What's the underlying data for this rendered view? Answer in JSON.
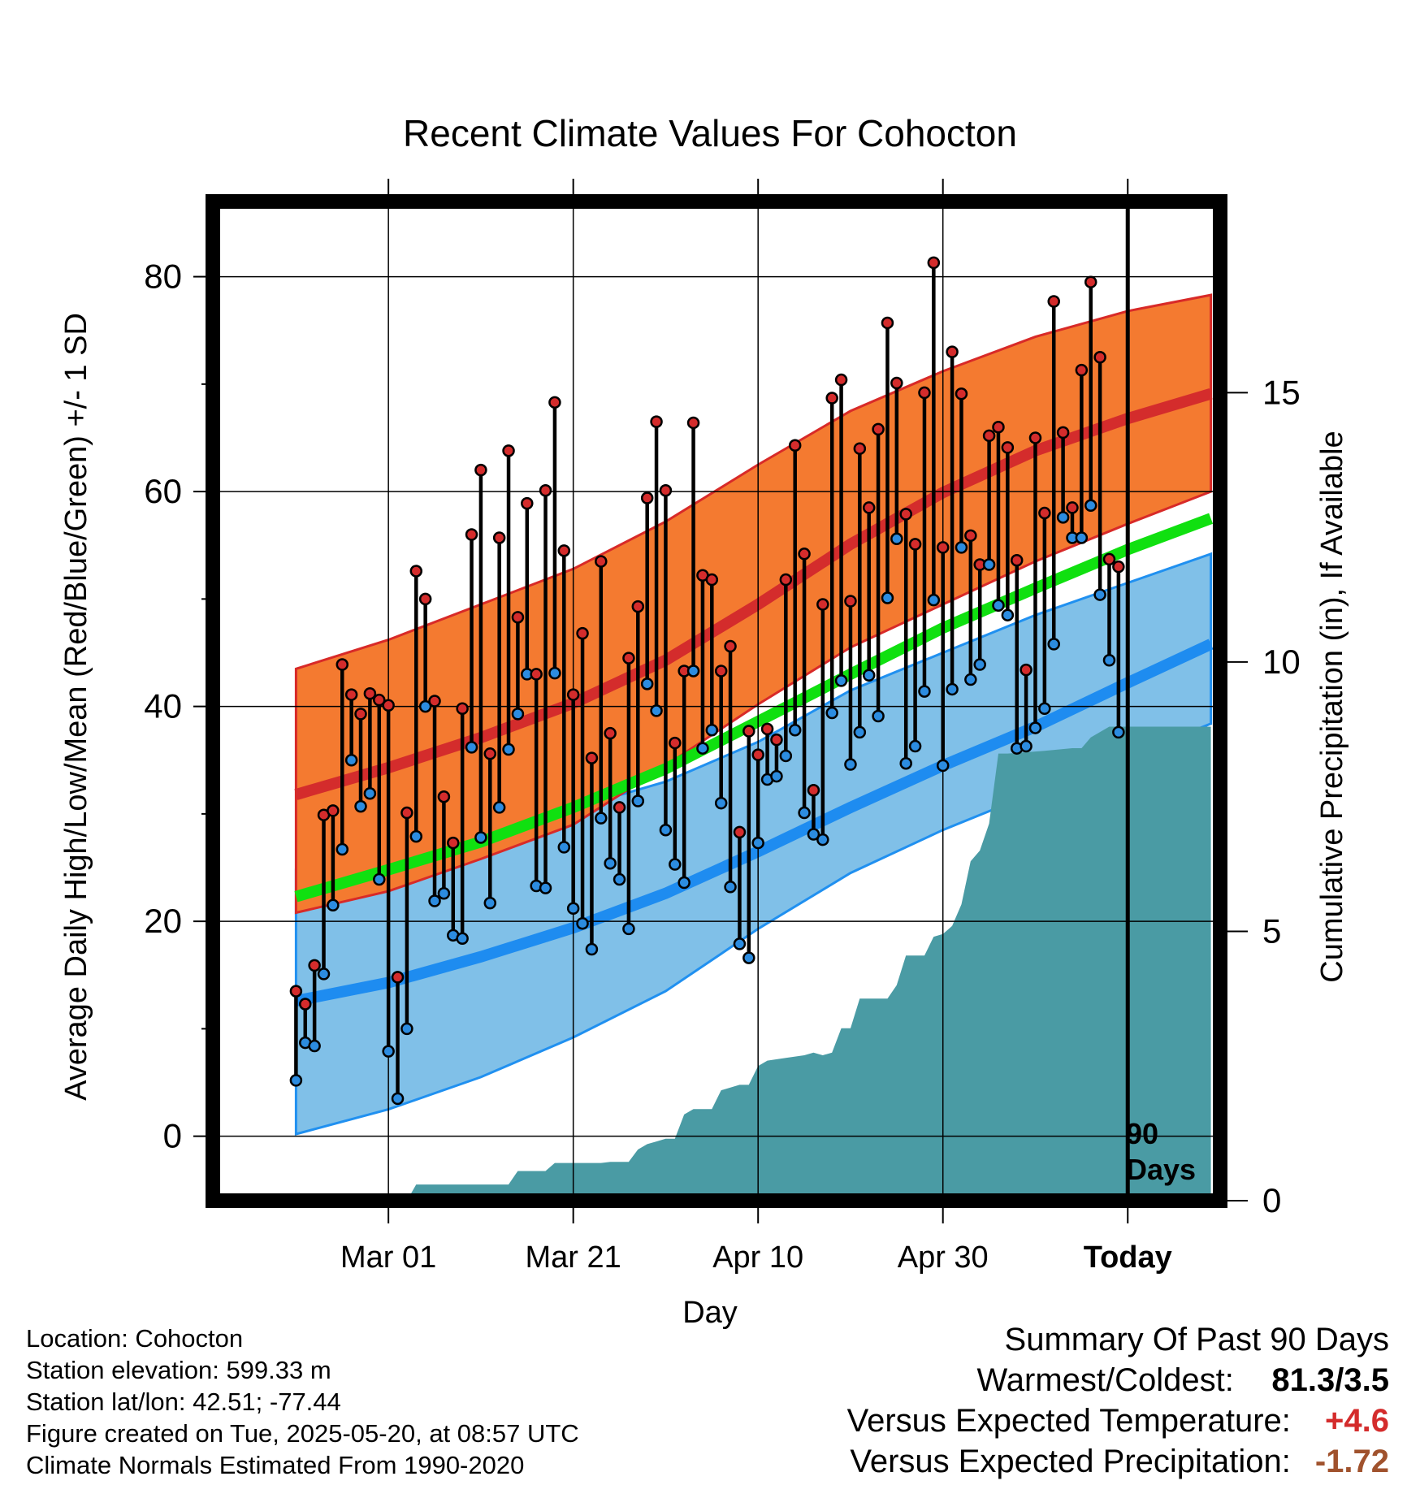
{
  "chart_data": {
    "type": "line",
    "title": "Recent Climate Values For Cohocton",
    "xlabel": "Day",
    "ylabel": "Average Daily High/Low/Mean (Red/Blue/Green) +/- 1 SD",
    "y2label": "Cumulative Precipitation (in), If Available",
    "x_range_days": [
      -99,
      10
    ],
    "ylim": [
      -6,
      87
    ],
    "y_ticks": [
      0,
      20,
      40,
      60,
      80
    ],
    "y2lim": [
      0,
      18.55
    ],
    "y2_ticks": [
      0,
      5,
      10,
      15
    ],
    "x_ticks": [
      {
        "day": -80,
        "label": "Mar 01"
      },
      {
        "day": -60,
        "label": "Mar 21"
      },
      {
        "day": -40,
        "label": "Apr 10"
      },
      {
        "day": -20,
        "label": "Apr 30"
      },
      {
        "day": 0,
        "label": "Today"
      }
    ],
    "grid": true,
    "today_marker_label": "90 Days",
    "normal_high": [
      [
        -90,
        31.8
      ],
      [
        -80,
        34.3
      ],
      [
        -70,
        37.1
      ],
      [
        -60,
        40.3
      ],
      [
        -50,
        44.3
      ],
      [
        -40,
        49.5
      ],
      [
        -30,
        55.1
      ],
      [
        -20,
        59.9
      ],
      [
        -10,
        63.8
      ],
      [
        0,
        66.8
      ],
      [
        9,
        69.1
      ]
    ],
    "normal_high_upper": [
      [
        -90,
        43.5
      ],
      [
        -80,
        46.2
      ],
      [
        -70,
        49.5
      ],
      [
        -60,
        52.8
      ],
      [
        -50,
        57.2
      ],
      [
        -40,
        62.5
      ],
      [
        -30,
        67.5
      ],
      [
        -20,
        71.2
      ],
      [
        -10,
        74.4
      ],
      [
        0,
        76.8
      ],
      [
        9,
        78.3
      ]
    ],
    "normal_high_lower": [
      [
        -90,
        20.8
      ],
      [
        -80,
        22.8
      ],
      [
        -70,
        25.8
      ],
      [
        -60,
        29.0
      ],
      [
        -50,
        34.5
      ],
      [
        -40,
        40.2
      ],
      [
        -30,
        45.5
      ],
      [
        -20,
        49.5
      ],
      [
        -10,
        53.5
      ],
      [
        0,
        57.0
      ],
      [
        9,
        60.0
      ]
    ],
    "normal_low": [
      [
        -90,
        12.6
      ],
      [
        -80,
        14.3
      ],
      [
        -70,
        16.7
      ],
      [
        -60,
        19.4
      ],
      [
        -50,
        22.6
      ],
      [
        -40,
        26.5
      ],
      [
        -30,
        30.6
      ],
      [
        -20,
        34.5
      ],
      [
        -10,
        38.1
      ],
      [
        0,
        42.2
      ],
      [
        9,
        45.8
      ]
    ],
    "normal_low_upper": [
      [
        -90,
        24.8
      ],
      [
        -80,
        26.8
      ],
      [
        -70,
        28.5
      ],
      [
        -60,
        30.5
      ],
      [
        -50,
        33.0
      ],
      [
        -40,
        36.7
      ],
      [
        -30,
        41.5
      ],
      [
        -20,
        45.0
      ],
      [
        -10,
        48.5
      ],
      [
        0,
        51.5
      ],
      [
        9,
        54.2
      ]
    ],
    "normal_low_lower": [
      [
        -90,
        0.2
      ],
      [
        -80,
        2.5
      ],
      [
        -70,
        5.5
      ],
      [
        -60,
        9.2
      ],
      [
        -50,
        13.5
      ],
      [
        -40,
        19.3
      ],
      [
        -30,
        24.5
      ],
      [
        -20,
        28.5
      ],
      [
        -10,
        32.0
      ],
      [
        0,
        35.3
      ],
      [
        9,
        38.4
      ]
    ],
    "normal_mean": [
      [
        -90,
        22.3
      ],
      [
        -80,
        24.8
      ],
      [
        -70,
        27.4
      ],
      [
        -60,
        30.6
      ],
      [
        -50,
        34.2
      ],
      [
        -40,
        38.6
      ],
      [
        -30,
        43.0
      ],
      [
        -20,
        47.3
      ],
      [
        -10,
        51.0
      ],
      [
        0,
        54.6
      ],
      [
        9,
        57.5
      ]
    ],
    "daily": [
      [
        -90,
        13.5,
        5.2
      ],
      [
        -89,
        12.3,
        8.7
      ],
      [
        -88,
        15.9,
        8.4
      ],
      [
        -87,
        29.9,
        15.1
      ],
      [
        -86,
        30.3,
        21.5
      ],
      [
        -85,
        43.9,
        26.7
      ],
      [
        -84,
        41.1,
        35.0
      ],
      [
        -83,
        39.3,
        30.7
      ],
      [
        -82,
        41.2,
        31.9
      ],
      [
        -81,
        40.6,
        23.9
      ],
      [
        -80,
        40.1,
        7.9
      ],
      [
        -79,
        14.8,
        3.5
      ],
      [
        -78,
        30.1,
        10.0
      ],
      [
        -77,
        52.6,
        27.9
      ],
      [
        -76,
        50.0,
        40.0
      ],
      [
        -75,
        40.5,
        21.9
      ],
      [
        -74,
        31.6,
        22.6
      ],
      [
        -73,
        27.3,
        18.7
      ],
      [
        -72,
        39.8,
        18.4
      ],
      [
        -71,
        56.0,
        36.2
      ],
      [
        -70,
        62.0,
        27.8
      ],
      [
        -69,
        35.6,
        21.7
      ],
      [
        -68,
        55.7,
        30.6
      ],
      [
        -67,
        63.8,
        36.0
      ],
      [
        -66,
        48.3,
        39.3
      ],
      [
        -65,
        58.9,
        43.0
      ],
      [
        -64,
        43.0,
        23.3
      ],
      [
        -63,
        60.1,
        23.1
      ],
      [
        -62,
        68.3,
        43.1
      ],
      [
        -61,
        54.5,
        26.9
      ],
      [
        -60,
        41.1,
        21.2
      ],
      [
        -59,
        46.8,
        19.8
      ],
      [
        -58,
        35.2,
        17.4
      ],
      [
        -57,
        53.5,
        29.6
      ],
      [
        -56,
        37.5,
        25.4
      ],
      [
        -55,
        30.6,
        23.9
      ],
      [
        -54,
        44.5,
        19.3
      ],
      [
        -53,
        49.3,
        31.2
      ],
      [
        -52,
        59.4,
        42.1
      ],
      [
        -51,
        66.5,
        39.6
      ],
      [
        -50,
        60.1,
        28.5
      ],
      [
        -49,
        36.6,
        25.3
      ],
      [
        -48,
        43.3,
        23.6
      ],
      [
        -47,
        66.4,
        43.3
      ],
      [
        -46,
        52.2,
        36.1
      ],
      [
        -45,
        51.8,
        37.8
      ],
      [
        -44,
        43.3,
        31.0
      ],
      [
        -43,
        45.6,
        23.2
      ],
      [
        -42,
        28.3,
        17.9
      ],
      [
        -41,
        37.7,
        16.6
      ],
      [
        -40,
        35.5,
        27.3
      ],
      [
        -39,
        37.9,
        33.2
      ],
      [
        -38,
        36.9,
        33.5
      ],
      [
        -37,
        51.8,
        35.4
      ],
      [
        -36,
        64.3,
        37.8
      ],
      [
        -35,
        54.2,
        30.1
      ],
      [
        -34,
        32.2,
        28.1
      ],
      [
        -33,
        49.5,
        27.6
      ],
      [
        -32,
        68.7,
        39.4
      ],
      [
        -31,
        70.4,
        42.4
      ],
      [
        -30,
        49.8,
        34.6
      ],
      [
        -29,
        64.0,
        37.6
      ],
      [
        -28,
        58.5,
        42.9
      ],
      [
        -27,
        65.8,
        39.1
      ],
      [
        -26,
        75.7,
        50.1
      ],
      [
        -25,
        70.1,
        55.6
      ],
      [
        -24,
        57.9,
        34.7
      ],
      [
        -23,
        55.1,
        36.3
      ],
      [
        -22,
        69.2,
        41.4
      ],
      [
        -21,
        81.3,
        49.9
      ],
      [
        -20,
        54.8,
        34.5
      ],
      [
        -19,
        73.0,
        41.6
      ],
      [
        -18,
        69.1,
        54.8
      ],
      [
        -17,
        55.9,
        42.5
      ],
      [
        -16,
        53.2,
        43.9
      ],
      [
        -15,
        65.2,
        53.2
      ],
      [
        -14,
        66.0,
        49.4
      ],
      [
        -13,
        64.1,
        48.5
      ],
      [
        -12,
        53.6,
        36.1
      ],
      [
        -11,
        43.4,
        36.3
      ],
      [
        -10,
        65.0,
        38.0
      ],
      [
        -9,
        58.0,
        39.8
      ],
      [
        -8,
        77.7,
        45.8
      ],
      [
        -7,
        65.5,
        57.6
      ],
      [
        -6,
        58.5,
        55.7
      ],
      [
        -5,
        71.3,
        55.7
      ],
      [
        -4,
        79.5,
        58.7
      ],
      [
        -3,
        72.5,
        50.4
      ],
      [
        -2,
        53.7,
        44.3
      ],
      [
        -1,
        53.0,
        37.6
      ]
    ],
    "precip_cumulative": [
      [
        -99,
        0.0
      ],
      [
        -78,
        0.0
      ],
      [
        -77,
        0.3
      ],
      [
        -67,
        0.3
      ],
      [
        -66,
        0.55
      ],
      [
        -63,
        0.55
      ],
      [
        -62,
        0.7
      ],
      [
        -57,
        0.7
      ],
      [
        -56,
        0.72
      ],
      [
        -54,
        0.72
      ],
      [
        -53,
        0.95
      ],
      [
        -52,
        1.05
      ],
      [
        -51,
        1.1
      ],
      [
        -50,
        1.15
      ],
      [
        -49,
        1.15
      ],
      [
        -48,
        1.6
      ],
      [
        -47,
        1.7
      ],
      [
        -45,
        1.7
      ],
      [
        -44,
        2.05
      ],
      [
        -43,
        2.1
      ],
      [
        -42,
        2.15
      ],
      [
        -41,
        2.15
      ],
      [
        -40,
        2.5
      ],
      [
        -39,
        2.6
      ],
      [
        -37,
        2.65
      ],
      [
        -35,
        2.7
      ],
      [
        -34,
        2.75
      ],
      [
        -33,
        2.7
      ],
      [
        -32,
        2.75
      ],
      [
        -31,
        3.2
      ],
      [
        -30,
        3.2
      ],
      [
        -29,
        3.75
      ],
      [
        -27,
        3.75
      ],
      [
        -26,
        3.75
      ],
      [
        -25,
        4.0
      ],
      [
        -24,
        4.55
      ],
      [
        -22,
        4.55
      ],
      [
        -21,
        4.9
      ],
      [
        -20,
        4.95
      ],
      [
        -19,
        5.1
      ],
      [
        -18,
        5.5
      ],
      [
        -17,
        6.3
      ],
      [
        -16,
        6.5
      ],
      [
        -15,
        7.0
      ],
      [
        -14,
        8.3
      ],
      [
        -13,
        8.3
      ],
      [
        -9,
        8.35
      ],
      [
        -6,
        8.4
      ],
      [
        -5,
        8.4
      ],
      [
        -4,
        8.6
      ],
      [
        -3,
        8.7
      ],
      [
        -2,
        8.8
      ],
      [
        0,
        8.8
      ],
      [
        9,
        8.8
      ]
    ]
  },
  "colors": {
    "high_band": "#F47A30",
    "high_band_edge": "#D82A28",
    "high_line": "#D42C2C",
    "high_line_dark": "#8B1010",
    "low_band": "#80C0E8",
    "low_band_edge": "#2090F0",
    "low_line": "#1E8CF0",
    "mean_line": "#10E010",
    "precip_fill": "#4A9BA4",
    "high_marker": "#D42C2C",
    "low_marker": "#2C8CE0",
    "positive_anomaly": "#D42C2C",
    "negative_precip_anomaly": "#A0522D"
  },
  "info": {
    "location": "Location: Cohocton",
    "elevation": "Station elevation: 599.33 m",
    "latlon": "Station lat/lon: 42.51; -77.44",
    "created": "Figure created on Tue, 2025-05-20, at 08:57 UTC",
    "normals": "Climate Normals Estimated From 1990-2020"
  },
  "summary": {
    "title": "Summary Of Past 90 Days",
    "warmest_coldest_label": "Warmest/Coldest:",
    "warmest_coldest_value": "81.3/3.5",
    "temp_label": "Versus Expected Temperature:",
    "temp_value": "+4.6",
    "precip_label": "Versus Expected Precipitation:",
    "precip_value": "-1.72"
  }
}
